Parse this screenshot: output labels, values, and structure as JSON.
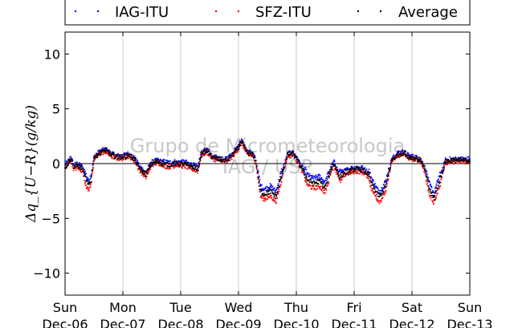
{
  "chart_data": {
    "type": "scatter",
    "ylabel": "Δq_{U−R}(g/kg)",
    "ylim": [
      -12,
      12
    ],
    "yticks": [
      10,
      5,
      0,
      -5,
      -10
    ],
    "xlim": [
      0,
      7
    ],
    "xticks": [
      {
        "x": 0,
        "day": "Sun",
        "date": "Dec-06"
      },
      {
        "x": 1,
        "day": "Mon",
        "date": "Dec-07"
      },
      {
        "x": 2,
        "day": "Tue",
        "date": "Dec-08"
      },
      {
        "x": 3,
        "day": "Wed",
        "date": "Dec-09"
      },
      {
        "x": 4,
        "day": "Thu",
        "date": "Dec-10"
      },
      {
        "x": 5,
        "day": "Fri",
        "date": "Dec-11"
      },
      {
        "x": 6,
        "day": "Sat",
        "date": "Dec-12"
      },
      {
        "x": 7,
        "day": "Sun",
        "date": "Dec-13"
      }
    ],
    "grid": "x-only",
    "zero_line": true,
    "legend_position": "top-outside",
    "series": [
      {
        "name": "IAG-ITU",
        "color": "#0000ff",
        "offset": 0.35
      },
      {
        "name": "SFZ-ITU",
        "color": "#ff0000",
        "offset": -0.35
      },
      {
        "name": "Average",
        "color": "#000000",
        "offset": 0.0
      }
    ],
    "average_trend": [
      [
        0.0,
        -0.3
      ],
      [
        0.05,
        0.0
      ],
      [
        0.1,
        0.5
      ],
      [
        0.15,
        -0.3
      ],
      [
        0.22,
        -0.2
      ],
      [
        0.3,
        -0.5
      ],
      [
        0.4,
        -2.0
      ],
      [
        0.45,
        -1.5
      ],
      [
        0.5,
        0.5
      ],
      [
        0.6,
        1.0
      ],
      [
        0.7,
        1.2
      ],
      [
        0.8,
        0.8
      ],
      [
        0.9,
        0.6
      ],
      [
        1.0,
        0.6
      ],
      [
        1.1,
        0.8
      ],
      [
        1.2,
        0.4
      ],
      [
        1.3,
        -0.5
      ],
      [
        1.4,
        -1.0
      ],
      [
        1.5,
        0.0
      ],
      [
        1.6,
        0.2
      ],
      [
        1.7,
        0.0
      ],
      [
        1.8,
        -0.1
      ],
      [
        1.9,
        0.0
      ],
      [
        2.0,
        0.0
      ],
      [
        2.1,
        -0.1
      ],
      [
        2.2,
        -0.3
      ],
      [
        2.3,
        -0.5
      ],
      [
        2.35,
        0.8
      ],
      [
        2.45,
        1.2
      ],
      [
        2.55,
        0.6
      ],
      [
        2.65,
        0.4
      ],
      [
        2.8,
        0.3
      ],
      [
        2.9,
        0.8
      ],
      [
        3.0,
        1.5
      ],
      [
        3.05,
        2.0
      ],
      [
        3.15,
        1.0
      ],
      [
        3.25,
        0.8
      ],
      [
        3.3,
        0.2
      ],
      [
        3.38,
        -2.5
      ],
      [
        3.45,
        -2.8
      ],
      [
        3.55,
        -2.5
      ],
      [
        3.65,
        -3.0
      ],
      [
        3.75,
        -1.0
      ],
      [
        3.85,
        0.8
      ],
      [
        3.95,
        0.9
      ],
      [
        4.05,
        0.0
      ],
      [
        4.1,
        -0.5
      ],
      [
        4.2,
        -1.5
      ],
      [
        4.3,
        -1.8
      ],
      [
        4.4,
        -1.6
      ],
      [
        4.5,
        -2.2
      ],
      [
        4.6,
        -0.5
      ],
      [
        4.65,
        0.0
      ],
      [
        4.75,
        -1.2
      ],
      [
        4.85,
        -0.8
      ],
      [
        4.95,
        -0.6
      ],
      [
        5.05,
        -0.5
      ],
      [
        5.15,
        -0.6
      ],
      [
        5.25,
        -1.0
      ],
      [
        5.3,
        -1.8
      ],
      [
        5.4,
        -2.8
      ],
      [
        5.45,
        -3.0
      ],
      [
        5.55,
        -2.0
      ],
      [
        5.65,
        0.3
      ],
      [
        5.75,
        0.8
      ],
      [
        5.85,
        1.0
      ],
      [
        5.95,
        0.6
      ],
      [
        6.05,
        0.5
      ],
      [
        6.15,
        0.3
      ],
      [
        6.22,
        -0.5
      ],
      [
        6.3,
        -2.3
      ],
      [
        6.38,
        -3.2
      ],
      [
        6.42,
        -2.5
      ],
      [
        6.5,
        -1.2
      ],
      [
        6.58,
        0.2
      ],
      [
        6.7,
        0.3
      ],
      [
        6.8,
        0.3
      ],
      [
        6.9,
        0.3
      ],
      [
        7.0,
        0.3
      ]
    ],
    "watermark_lines": [
      "Grupo de Micrometeorologia",
      "IAG / USP"
    ]
  }
}
